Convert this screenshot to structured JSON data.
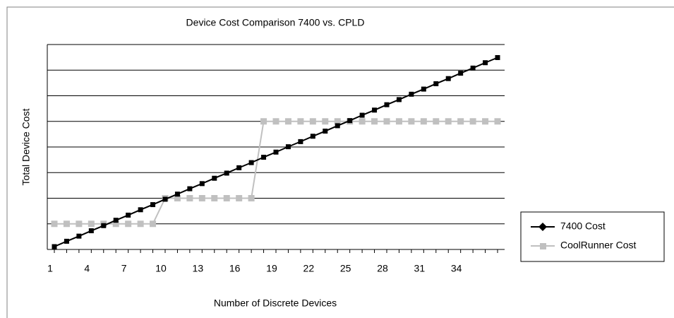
{
  "chart_data": {
    "type": "line",
    "title": "Device Cost Comparison 7400 vs. CPLD",
    "xlabel": "Number of Discrete Devices",
    "ylabel": "Total Device Cost",
    "categories": [
      "1",
      null,
      null,
      "4",
      null,
      null,
      "7",
      null,
      null,
      "10",
      null,
      null,
      "13",
      null,
      null,
      "16",
      null,
      null,
      "19",
      null,
      null,
      "22",
      null,
      null,
      "25",
      null,
      null,
      "28",
      null,
      null,
      "31",
      null,
      null,
      "34",
      null,
      null,
      null
    ],
    "series": [
      {
        "name": "7400 Cost",
        "color": "#000000",
        "marker": "square",
        "values": [
          0.11,
          0.32,
          0.52,
          0.73,
          0.93,
          1.14,
          1.34,
          1.55,
          1.75,
          1.96,
          2.16,
          2.37,
          2.57,
          2.78,
          2.98,
          3.19,
          3.39,
          3.6,
          3.8,
          4.01,
          4.21,
          4.42,
          4.62,
          4.83,
          5.03,
          5.24,
          5.44,
          5.65,
          5.85,
          6.06,
          6.26,
          6.47,
          6.67,
          6.88,
          7.08,
          7.29,
          7.49
        ]
      },
      {
        "name": "CoolRunner Cost",
        "color": "#c0c0c0",
        "marker": "square",
        "values": [
          1,
          1,
          1,
          1,
          1,
          1,
          1,
          1,
          1,
          2,
          2,
          2,
          2,
          2,
          2,
          2,
          2,
          5,
          5,
          5,
          5,
          5,
          5,
          5,
          5,
          5,
          5,
          5,
          5,
          5,
          5,
          5,
          5,
          5,
          5,
          5,
          5
        ]
      }
    ],
    "ylim": [
      0,
      8
    ],
    "yticks": [
      0,
      1,
      2,
      3,
      4,
      5,
      6,
      7,
      8
    ],
    "grid": true,
    "legend": "right"
  }
}
